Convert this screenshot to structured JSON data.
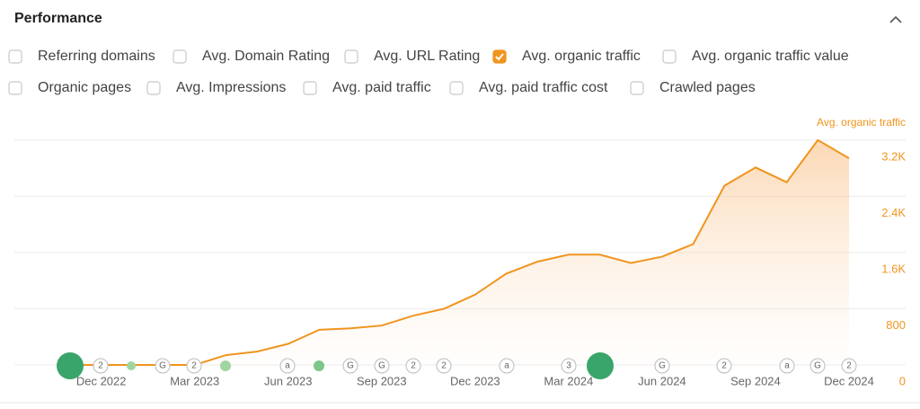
{
  "header": {
    "title": "Performance"
  },
  "checkboxes": [
    {
      "label": "Referring domains",
      "checked": false
    },
    {
      "label": "Avg. Domain Rating",
      "checked": false
    },
    {
      "label": "Avg. URL Rating",
      "checked": false
    },
    {
      "label": "Avg. organic traffic",
      "checked": true
    },
    {
      "label": "Avg. organic traffic value",
      "checked": false
    },
    {
      "label": "Organic pages",
      "checked": false
    },
    {
      "label": "Avg. Impressions",
      "checked": false
    },
    {
      "label": "Avg. paid traffic",
      "checked": false
    },
    {
      "label": "Avg. paid traffic cost",
      "checked": false
    },
    {
      "label": "Crawled pages",
      "checked": false
    }
  ],
  "chart_data": {
    "type": "area",
    "categories": [
      null,
      "Dec 2022",
      null,
      null,
      "Mar 2023",
      null,
      null,
      "Jun 2023",
      null,
      null,
      "Sep 2023",
      null,
      null,
      "Dec 2023",
      null,
      null,
      "Mar 2024",
      null,
      null,
      "Jun 2024",
      null,
      null,
      "Sep 2024",
      null,
      null,
      "Dec 2024"
    ],
    "series": [
      {
        "name": "Avg. organic traffic",
        "color": "#f0951e",
        "values": [
          0,
          0,
          0,
          0,
          0,
          140,
          190,
          300,
          500,
          520,
          560,
          700,
          800,
          1000,
          1300,
          1470,
          1570,
          1570,
          1450,
          1540,
          1720,
          2550,
          2810,
          2600,
          3200,
          2940
        ]
      }
    ],
    "ylim": [
      0,
      3300
    ],
    "yticks": [
      0,
      800,
      {
        "value": 1600,
        "label": "1.6K"
      },
      {
        "value": 2400,
        "label": "2.4K"
      },
      {
        "value": 3200,
        "label": "3.2K"
      }
    ],
    "grid": true,
    "annotations": [
      "2",
      "G",
      "2",
      "a",
      "G",
      "G",
      "2",
      "2",
      "a",
      "3",
      "G",
      "2",
      "a",
      "G",
      "2"
    ]
  }
}
